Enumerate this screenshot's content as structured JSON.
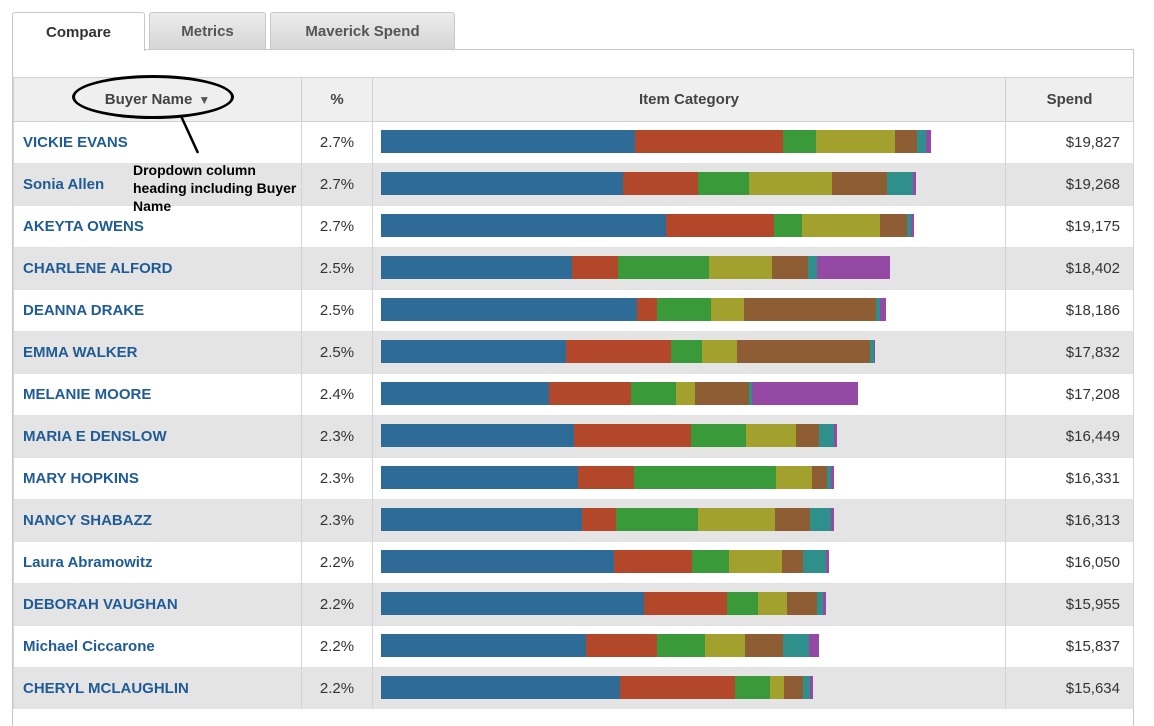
{
  "tabs": [
    {
      "label": "Compare",
      "active": true
    },
    {
      "label": "Metrics",
      "active": false
    },
    {
      "label": "Maverick Spend",
      "active": false
    }
  ],
  "columns": {
    "buyer": "Buyer Name",
    "pct": "%",
    "category": "Item Category",
    "spend": "Spend"
  },
  "annotation": {
    "text": "Dropdown column heading including Buyer Name"
  },
  "colors": [
    "#2e6b97",
    "#b2472a",
    "#3a9a3a",
    "#a3a12e",
    "#8e5d33",
    "#2f8f8a",
    "#944aa4"
  ],
  "rows": [
    {
      "name": "VICKIE EVANS",
      "pct": "2.7%",
      "spend": "$19,827",
      "segments": [
        254,
        148,
        33,
        79,
        22,
        9,
        5
      ]
    },
    {
      "name": "Sonia Allen",
      "pct": "2.7%",
      "spend": "$19,268",
      "segments": [
        242,
        75,
        51,
        83,
        55,
        26,
        3
      ]
    },
    {
      "name": "AKEYTA OWENS",
      "pct": "2.7%",
      "spend": "$19,175",
      "segments": [
        285,
        108,
        28,
        78,
        27,
        4,
        3
      ]
    },
    {
      "name": "CHARLENE ALFORD",
      "pct": "2.5%",
      "spend": "$18,402",
      "segments": [
        191,
        46,
        91,
        63,
        36,
        9,
        73
      ]
    },
    {
      "name": "DEANNA DRAKE",
      "pct": "2.5%",
      "spend": "$18,186",
      "segments": [
        256,
        20,
        54,
        33,
        132,
        4,
        6
      ]
    },
    {
      "name": "EMMA WALKER",
      "pct": "2.5%",
      "spend": "$17,832",
      "segments": [
        185,
        105,
        31,
        35,
        133,
        4,
        1
      ]
    },
    {
      "name": "MELANIE MOORE",
      "pct": "2.4%",
      "spend": "$17,208",
      "segments": [
        168,
        82,
        45,
        19,
        54,
        3,
        106
      ]
    },
    {
      "name": "MARIA E DENSLOW",
      "pct": "2.3%",
      "spend": "$16,449",
      "segments": [
        193,
        117,
        55,
        50,
        23,
        15,
        3
      ]
    },
    {
      "name": "MARY HOPKINS",
      "pct": "2.3%",
      "spend": "$16,331",
      "segments": [
        197,
        56,
        142,
        36,
        15,
        4,
        3
      ]
    },
    {
      "name": "NANCY SHABAZZ",
      "pct": "2.3%",
      "spend": "$16,313",
      "segments": [
        201,
        34,
        82,
        77,
        35,
        21,
        3
      ]
    },
    {
      "name": "Laura Abramowitz",
      "pct": "2.2%",
      "spend": "$16,050",
      "segments": [
        233,
        78,
        37,
        53,
        21,
        23,
        3
      ]
    },
    {
      "name": "DEBORAH VAUGHAN",
      "pct": "2.2%",
      "spend": "$15,955",
      "segments": [
        263,
        83,
        31,
        29,
        30,
        6,
        3
      ]
    },
    {
      "name": "Michael Ciccarone",
      "pct": "2.2%",
      "spend": "$15,837",
      "segments": [
        205,
        71,
        48,
        40,
        38,
        26,
        10
      ]
    },
    {
      "name": "CHERYL MCLAUGHLIN",
      "pct": "2.2%",
      "spend": "$15,634",
      "segments": [
        239,
        115,
        35,
        14,
        19,
        7,
        3
      ]
    }
  ]
}
